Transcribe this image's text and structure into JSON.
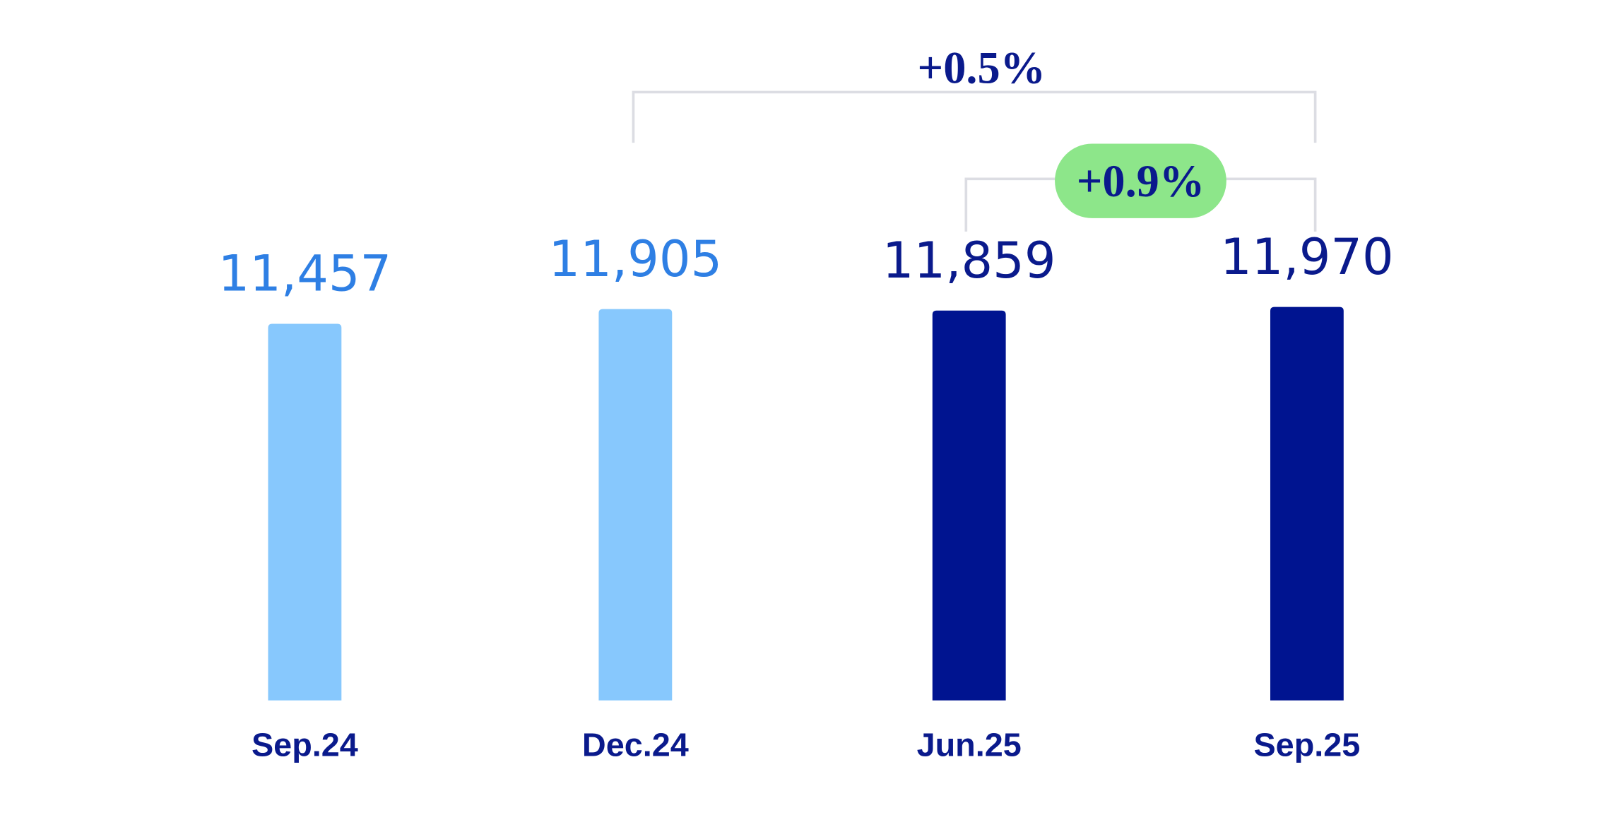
{
  "chart_data": {
    "type": "bar",
    "categories": [
      "Sep.24",
      "Dec.24",
      "Jun.25",
      "Sep.25"
    ],
    "values": [
      11457,
      11905,
      11859,
      11970
    ],
    "value_labels": [
      "11,457",
      "11,905",
      "11,859",
      "11,970"
    ],
    "colors": [
      "#87c8fd",
      "#87c8fd",
      "#001490",
      "#001490"
    ],
    "value_label_colors": [
      "#2e7fe4",
      "#2e7fe4",
      "#0a1a8c",
      "#0a1a8c"
    ],
    "annotations": [
      "+0.5%",
      "+0.9%"
    ]
  }
}
